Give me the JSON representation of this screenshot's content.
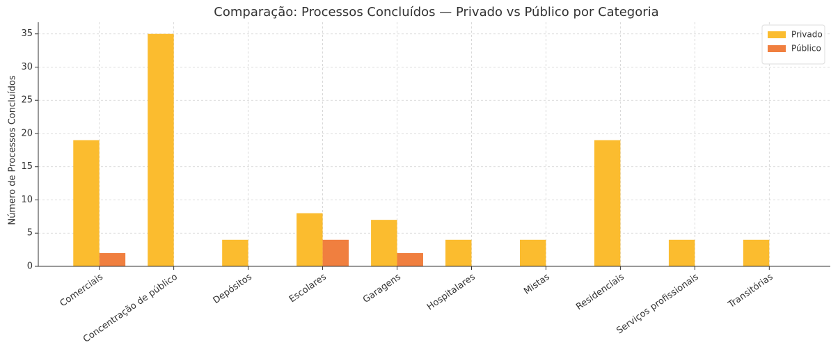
{
  "chart_data": {
    "type": "bar",
    "title": "Comparação: Processos Concluídos — Privado vs Público por Categoria",
    "y_label": "Número de Processos Concluídos",
    "categories": [
      "Comerciais",
      "Concentração de público",
      "Depósitos",
      "Escolares",
      "Garagens",
      "Hospitalares",
      "Mistas",
      "Residenciais",
      "Serviços profissionais",
      "Transitórias"
    ],
    "series": [
      {
        "name": "Privado",
        "color": "#fbbc2f",
        "values": [
          19,
          35,
          4,
          8,
          7,
          4,
          4,
          19,
          4,
          4
        ]
      },
      {
        "name": "Público",
        "color": "#f07f3f",
        "values": [
          2,
          0,
          0,
          4,
          2,
          0,
          0,
          0,
          0,
          0
        ]
      }
    ],
    "ylim": [
      0,
      36.75
    ],
    "yticks": [
      0,
      5,
      10,
      15,
      20,
      25,
      30,
      35
    ],
    "grid": true,
    "legend": "upper right"
  }
}
